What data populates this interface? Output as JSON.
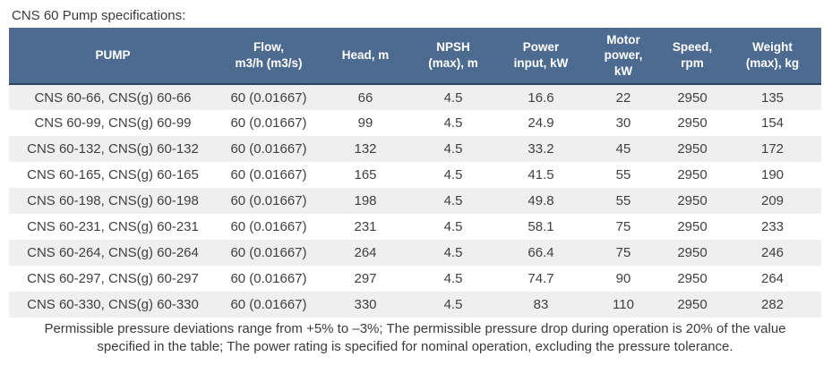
{
  "page": {
    "title": "CNS 60 Pump specifications:"
  },
  "table": {
    "headers": [
      "PUMP",
      "Flow,\nm3/h (m3/s)",
      "Head, m",
      "NPSH\n(max), m",
      "Power\ninput, kW",
      "Motor\npower,\nkW",
      "Speed,\nrpm",
      "Weight\n(max), kg"
    ],
    "rows": [
      [
        "CNS 60-66, CNS(g) 60-66",
        "60 (0.01667)",
        "66",
        "4.5",
        "16.6",
        "22",
        "2950",
        "135"
      ],
      [
        "CNS 60-99, CNS(g) 60-99",
        "60 (0.01667)",
        "99",
        "4.5",
        "24.9",
        "30",
        "2950",
        "154"
      ],
      [
        "CNS 60-132, CNS(g) 60-132",
        "60 (0.01667)",
        "132",
        "4.5",
        "33.2",
        "45",
        "2950",
        "172"
      ],
      [
        "CNS 60-165, CNS(g) 60-165",
        "60 (0.01667)",
        "165",
        "4.5",
        "41.5",
        "55",
        "2950",
        "190"
      ],
      [
        "CNS 60-198, CNS(g) 60-198",
        "60 (0.01667)",
        "198",
        "4.5",
        "49.8",
        "55",
        "2950",
        "209"
      ],
      [
        "CNS 60-231, CNS(g) 60-231",
        "60 (0.01667)",
        "231",
        "4.5",
        "58.1",
        "75",
        "2950",
        "233"
      ],
      [
        "CNS 60-264, CNS(g) 60-264",
        "60 (0.01667)",
        "264",
        "4.5",
        "66.4",
        "75",
        "2950",
        "246"
      ],
      [
        "CNS 60-297, CNS(g) 60-297",
        "60 (0.01667)",
        "297",
        "4.5",
        "74.7",
        "90",
        "2950",
        "264"
      ],
      [
        "CNS 60-330, CNS(g) 60-330",
        "60 (0.01667)",
        "330",
        "4.5",
        "83",
        "110",
        "2950",
        "282"
      ]
    ]
  },
  "footnote": {
    "text": "Permissible pressure deviations range from +5% to –3%; The permissible pressure drop during operation is 20% of the value\nspecified in the table; The power rating is specified for nominal operation, excluding the pressure tolerance."
  },
  "colors": {
    "header_background": "#4d6b91",
    "header_text": "#ffffff",
    "header_bottom_border": "#2b4560",
    "row_stripe": "#efefef",
    "body_text": "#404040"
  }
}
